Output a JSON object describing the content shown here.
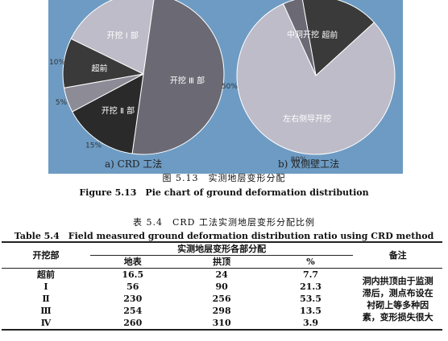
{
  "figure": {
    "caption_cn": "图 5.13　实测地层变形分配",
    "caption_en": "Figure 5.13　Pie chart of ground deformation distribution"
  },
  "chart_data": [
    {
      "type": "pie",
      "subtitle": "a) CRD 工法",
      "slices": [
        {
          "label": "超前",
          "value": 10,
          "value_label": "10%",
          "color": "#3a3a3a"
        },
        {
          "label": "开挖 Ⅰ 部",
          "value": 20,
          "value_label": "20%",
          "color": "#bdbcc8"
        },
        {
          "label": "开挖 Ⅲ 部",
          "value": 50,
          "value_label": "50%",
          "color": "#6b6a74"
        },
        {
          "label": "开挖 Ⅱ 部",
          "value": 15,
          "value_label": "15%",
          "color": "#2a2a2a"
        },
        {
          "label": "",
          "value": 5,
          "value_label": "5%",
          "color": "#8c8b96"
        }
      ]
    },
    {
      "type": "pie",
      "subtitle": "b) 双侧壁工法",
      "slices": [
        {
          "label": "超前",
          "value": 16,
          "value_label": "16%",
          "color": "#3a3a3a"
        },
        {
          "label": "左右侧导开挖",
          "value": 80,
          "value_label": "80%",
          "color": "#bdbcc8"
        },
        {
          "label": "中洞开挖",
          "value": 4,
          "value_label": "4%",
          "color": "#6b6a74"
        }
      ]
    }
  ],
  "table": {
    "caption_cn": "表 5.4　CRD 工法实测地层变形分配比例",
    "caption_en": "Table 5.4　Field measured ground deformation distribution ratio using CRD method",
    "col_header_part": "开挖部",
    "col_group_header": "实测地层变形各部分配",
    "col_ground": "地表",
    "col_vault": "拱顶",
    "col_pct": "%",
    "col_note": "备注",
    "rows": [
      {
        "part": "超前",
        "ground": "16.5",
        "vault": "24",
        "pct": "7.7"
      },
      {
        "part": "Ⅰ",
        "ground": "56",
        "vault": "90",
        "pct": "21.3"
      },
      {
        "part": "Ⅱ",
        "ground": "230",
        "vault": "256",
        "pct": "53.5"
      },
      {
        "part": "Ⅲ",
        "ground": "254",
        "vault": "298",
        "pct": "13.5"
      },
      {
        "part": "Ⅳ",
        "ground": "260",
        "vault": "310",
        "pct": "3.9"
      }
    ],
    "note_lines": [
      "洞内拱顶由于监测",
      "滞后，测点布设在",
      "衬砌上等多种因",
      "素，变形损失很大"
    ]
  }
}
